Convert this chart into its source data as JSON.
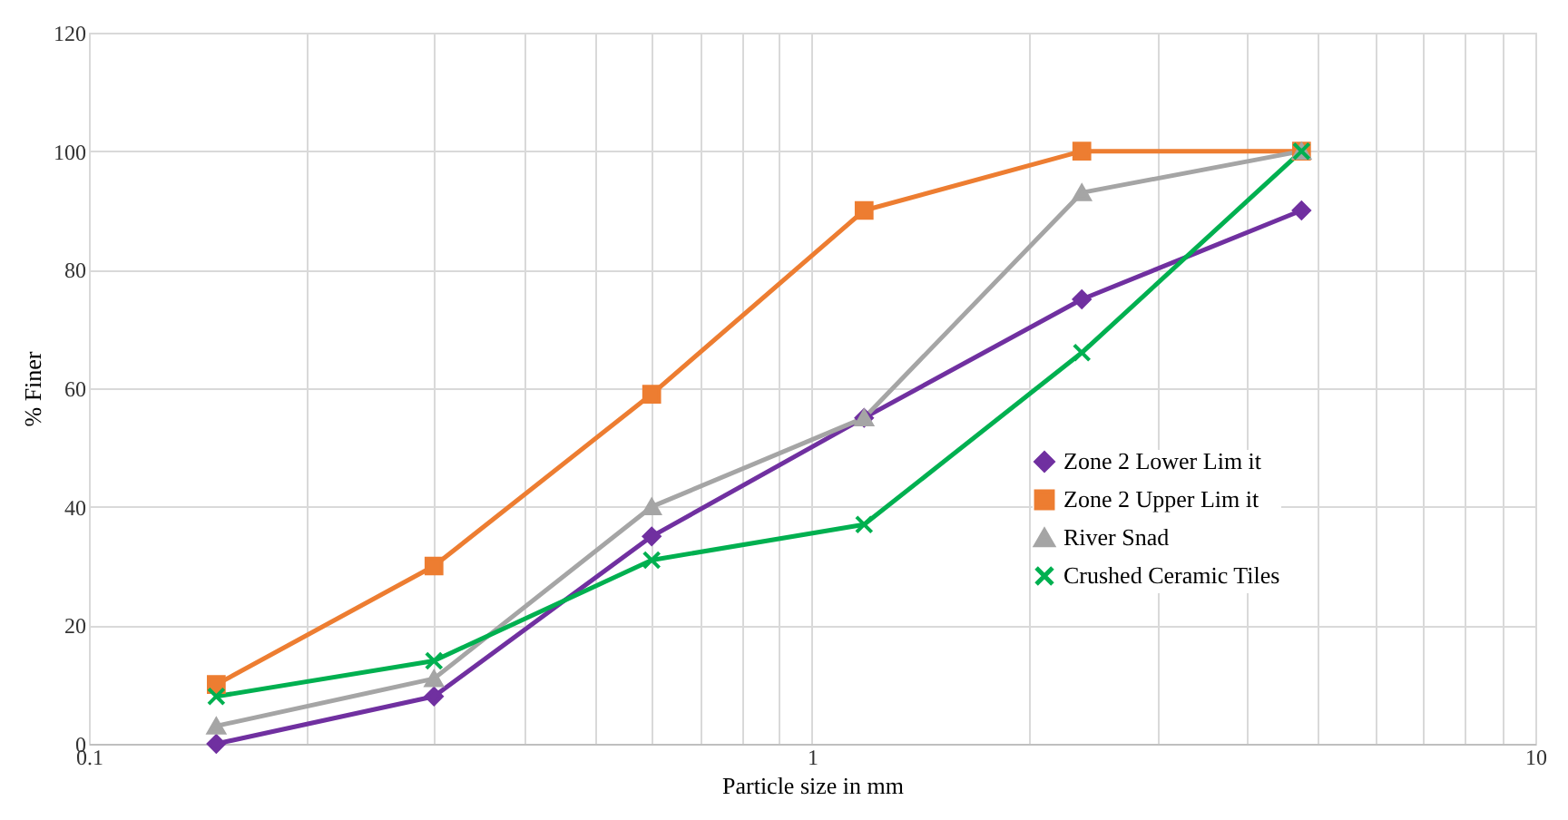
{
  "chart_data": {
    "type": "line",
    "xlabel": "Particle size in mm",
    "ylabel": "% Finer",
    "log": "x",
    "x": [
      0.15,
      0.3,
      0.6,
      1.18,
      2.36,
      4.75
    ],
    "series": [
      {
        "name": "Zone 2 Lower Lim it",
        "color": "#7030a0",
        "marker": "diamond",
        "values": [
          0,
          8,
          35,
          55,
          75,
          90
        ]
      },
      {
        "name": "Zone 2 Upper Lim it",
        "color": "#ed7d31",
        "marker": "square",
        "values": [
          10,
          30,
          59,
          90,
          100,
          100
        ]
      },
      {
        "name": "River Snad",
        "color": "#a5a5a5",
        "marker": "triangle",
        "values": [
          3,
          11,
          40,
          55,
          93,
          100
        ]
      },
      {
        "name": "Crushed Ceramic Tiles",
        "color": "#00b050",
        "marker": "cross",
        "values": [
          8,
          14,
          31,
          37,
          66,
          100
        ]
      }
    ],
    "xlim": [
      0.1,
      10
    ],
    "xticks": [
      0.1,
      {
        "value": 0.2,
        "label": null
      },
      {
        "value": 0.3,
        "label": null
      },
      {
        "value": 0.4,
        "label": null
      },
      {
        "value": 0.5,
        "label": null
      },
      {
        "value": 0.6,
        "label": null
      },
      {
        "value": 0.7,
        "label": null
      },
      {
        "value": 0.8,
        "label": null
      },
      {
        "value": 0.9,
        "label": null
      },
      1,
      {
        "value": 2,
        "label": null
      },
      {
        "value": 3,
        "label": null
      },
      {
        "value": 4,
        "label": null
      },
      {
        "value": 5,
        "label": null
      },
      {
        "value": 6,
        "label": null
      },
      {
        "value": 7,
        "label": null
      },
      {
        "value": 8,
        "label": null
      },
      {
        "value": 9,
        "label": null
      },
      10
    ],
    "ylim": [
      0,
      120
    ],
    "yticks": [
      0,
      20,
      40,
      60,
      80,
      100,
      120
    ],
    "grid": true,
    "legend": "bottom right"
  }
}
